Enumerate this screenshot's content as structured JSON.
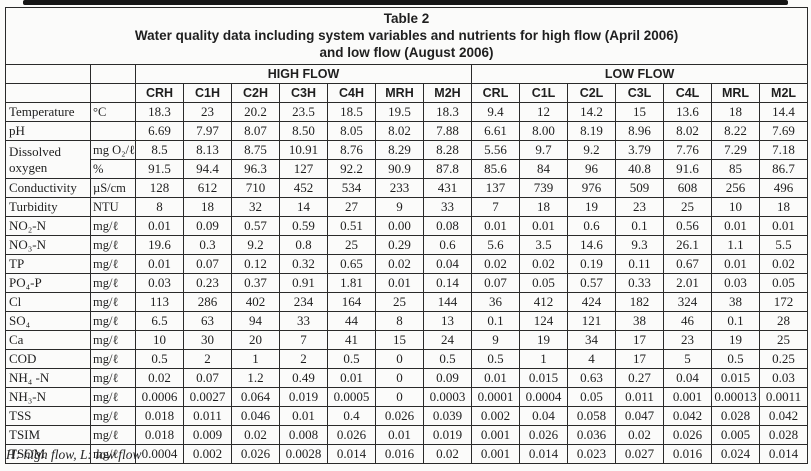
{
  "title": {
    "line1": "Table 2",
    "line2": "Water quality data including system variables and nutrients for high flow (April 2006)",
    "line3": "and low flow (August 2006)"
  },
  "table": {
    "groups": [
      {
        "label": "HIGH FLOW",
        "columns": [
          "CRH",
          "C1H",
          "C2H",
          "C3H",
          "C4H",
          "MRH",
          "M2H"
        ]
      },
      {
        "label": "LOW FLOW",
        "columns": [
          "CRL",
          "C1L",
          "C2L",
          "C3L",
          "C4L",
          "MRL",
          "M2L"
        ]
      }
    ],
    "rows": [
      {
        "param": "Temperature",
        "unit": "°C",
        "values": [
          "18.3",
          "23",
          "20.2",
          "23.5",
          "18.5",
          "19.5",
          "18.3",
          "9.4",
          "12",
          "14.2",
          "15",
          "13.6",
          "18",
          "14.4"
        ]
      },
      {
        "param": "pH",
        "unit": "",
        "values": [
          "6.69",
          "7.97",
          "8.07",
          "8.50",
          "8.05",
          "8.02",
          "7.88",
          "6.61",
          "8.00",
          "8.19",
          "8.96",
          "8.02",
          "8.22",
          "7.69"
        ]
      },
      {
        "param": "Dissolved oxygen",
        "unit": "mg O₂/ℓ",
        "param_rowspan": 2,
        "values": [
          "8.5",
          "8.13",
          "8.75",
          "10.91",
          "8.76",
          "8.29",
          "8.28",
          "5.56",
          "9.7",
          "9.2",
          "3.79",
          "7.76",
          "7.29",
          "7.18"
        ]
      },
      {
        "param": null,
        "unit": "%",
        "values": [
          "91.5",
          "94.4",
          "96.3",
          "127",
          "92.2",
          "90.9",
          "87.8",
          "85.6",
          "84",
          "96",
          "40.8",
          "91.6",
          "85",
          "86.7"
        ]
      },
      {
        "param": "Conductivity",
        "unit": "µS/cm",
        "values": [
          "128",
          "612",
          "710",
          "452",
          "534",
          "233",
          "431",
          "137",
          "739",
          "976",
          "509",
          "608",
          "256",
          "496"
        ]
      },
      {
        "param": "Turbidity",
        "unit": "NTU",
        "values": [
          "8",
          "18",
          "32",
          "14",
          "27",
          "9",
          "33",
          "7",
          "18",
          "19",
          "23",
          "25",
          "10",
          "18"
        ]
      },
      {
        "param": "NO₂-N",
        "unit": "mg/ℓ",
        "values": [
          "0.01",
          "0.09",
          "0.57",
          "0.59",
          "0.51",
          "0.00",
          "0.08",
          "0.01",
          "0.01",
          "0.6",
          "0.1",
          "0.56",
          "0.01",
          "0.01"
        ]
      },
      {
        "param": "NO₃-N",
        "unit": "mg/ℓ",
        "values": [
          "19.6",
          "0.3",
          "9.2",
          "0.8",
          "25",
          "0.29",
          "0.6",
          "5.6",
          "3.5",
          "14.6",
          "9.3",
          "26.1",
          "1.1",
          "5.5"
        ]
      },
      {
        "param": "TP",
        "unit": "mg/ℓ",
        "values": [
          "0.01",
          "0.07",
          "0.12",
          "0.32",
          "0.65",
          "0.02",
          "0.04",
          "0.02",
          "0.02",
          "0.19",
          "0.11",
          "0.67",
          "0.01",
          "0.02"
        ]
      },
      {
        "param": "PO₄-P",
        "unit": "mg/ℓ",
        "values": [
          "0.03",
          "0.23",
          "0.37",
          "0.91",
          "1.81",
          "0.01",
          "0.14",
          "0.07",
          "0.05",
          "0.57",
          "0.33",
          "2.01",
          "0.03",
          "0.05"
        ]
      },
      {
        "param": "Cl",
        "unit": "mg/ℓ",
        "values": [
          "113",
          "286",
          "402",
          "234",
          "164",
          "25",
          "144",
          "36",
          "412",
          "424",
          "182",
          "324",
          "38",
          "172"
        ]
      },
      {
        "param": "SO₄",
        "unit": "mg/ℓ",
        "values": [
          "6.5",
          "63",
          "94",
          "33",
          "44",
          "8",
          "13",
          "0.1",
          "124",
          "121",
          "38",
          "46",
          "0.1",
          "28"
        ]
      },
      {
        "param": "Ca",
        "unit": "mg/ℓ",
        "values": [
          "10",
          "30",
          "20",
          "7",
          "41",
          "15",
          "24",
          "9",
          "19",
          "34",
          "17",
          "23",
          "19",
          "25"
        ]
      },
      {
        "param": "COD",
        "unit": "mg/ℓ",
        "values": [
          "0.5",
          "2",
          "1",
          "2",
          "0.5",
          "0",
          "0.5",
          "0.5",
          "1",
          "4",
          "17",
          "5",
          "0.5",
          "0.25"
        ]
      },
      {
        "param": "NH₄ -N",
        "unit": "mg/ℓ",
        "values": [
          "0.02",
          "0.07",
          "1.2",
          "0.49",
          "0.01",
          "0",
          "0.09",
          "0.01",
          "0.015",
          "0.63",
          "0.27",
          "0.04",
          "0.015",
          "0.03"
        ]
      },
      {
        "param": "NH₃-N",
        "unit": "mg/ℓ",
        "values": [
          "0.0006",
          "0.0027",
          "0.064",
          "0.019",
          "0.0005",
          "0",
          "0.0003",
          "0.0001",
          "0.0004",
          "0.05",
          "0.011",
          "0.001",
          "0.00013",
          "0.0011"
        ]
      },
      {
        "param": "TSS",
        "unit": "mg/ℓ",
        "values": [
          "0.018",
          "0.011",
          "0.046",
          "0.01",
          "0.4",
          "0.026",
          "0.039",
          "0.002",
          "0.04",
          "0.058",
          "0.047",
          "0.042",
          "0.028",
          "0.042"
        ]
      },
      {
        "param": "TSIM",
        "unit": "mg/ℓ",
        "values": [
          "0.018",
          "0.009",
          "0.02",
          "0.008",
          "0.026",
          "0.01",
          "0.019",
          "0.001",
          "0.026",
          "0.036",
          "0.02",
          "0.026",
          "0.005",
          "0.028"
        ]
      },
      {
        "param": "TSOM",
        "unit": "mg/ℓ",
        "values": [
          "0.0004",
          "0.002",
          "0.026",
          "0.0028",
          "0.014",
          "0.016",
          "0.02",
          "0.001",
          "0.014",
          "0.023",
          "0.027",
          "0.016",
          "0.024",
          "0.014"
        ]
      }
    ]
  },
  "footnote": "H: high flow, L: low flow"
}
